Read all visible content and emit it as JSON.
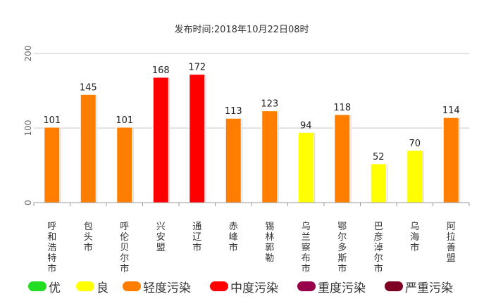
{
  "chart_data": {
    "type": "bar",
    "title": "发布时间:2018年10月22日08时",
    "categories": [
      "呼和浩特市",
      "包头市",
      "呼伦贝尔市",
      "兴安盟",
      "通辽市",
      "赤峰市",
      "锡林郭勒",
      "乌兰察布市",
      "鄂尔多斯市",
      "巴彦淖尔市",
      "乌海市",
      "阿拉善盟"
    ],
    "values": [
      101,
      145,
      101,
      168,
      172,
      113,
      123,
      94,
      118,
      52,
      70,
      114
    ],
    "bar_levels": [
      "轻度污染",
      "轻度污染",
      "轻度污染",
      "中度污染",
      "中度污染",
      "轻度污染",
      "轻度污染",
      "良",
      "轻度污染",
      "良",
      "良",
      "轻度污染"
    ],
    "ylim": [
      0,
      200
    ],
    "yticks": [
      0,
      100,
      200
    ],
    "xlabel": "",
    "ylabel": "",
    "grid": true,
    "legend_position": "bottom"
  },
  "legend": [
    {
      "label": "优",
      "color": "#22dd22"
    },
    {
      "label": "良",
      "color": "#ffff00"
    },
    {
      "label": "轻度污染",
      "color": "#ff7e00"
    },
    {
      "label": "中度污染",
      "color": "#ff0000"
    },
    {
      "label": "重度污染",
      "color": "#99004c"
    },
    {
      "label": "严重污染",
      "color": "#7e0023"
    }
  ]
}
